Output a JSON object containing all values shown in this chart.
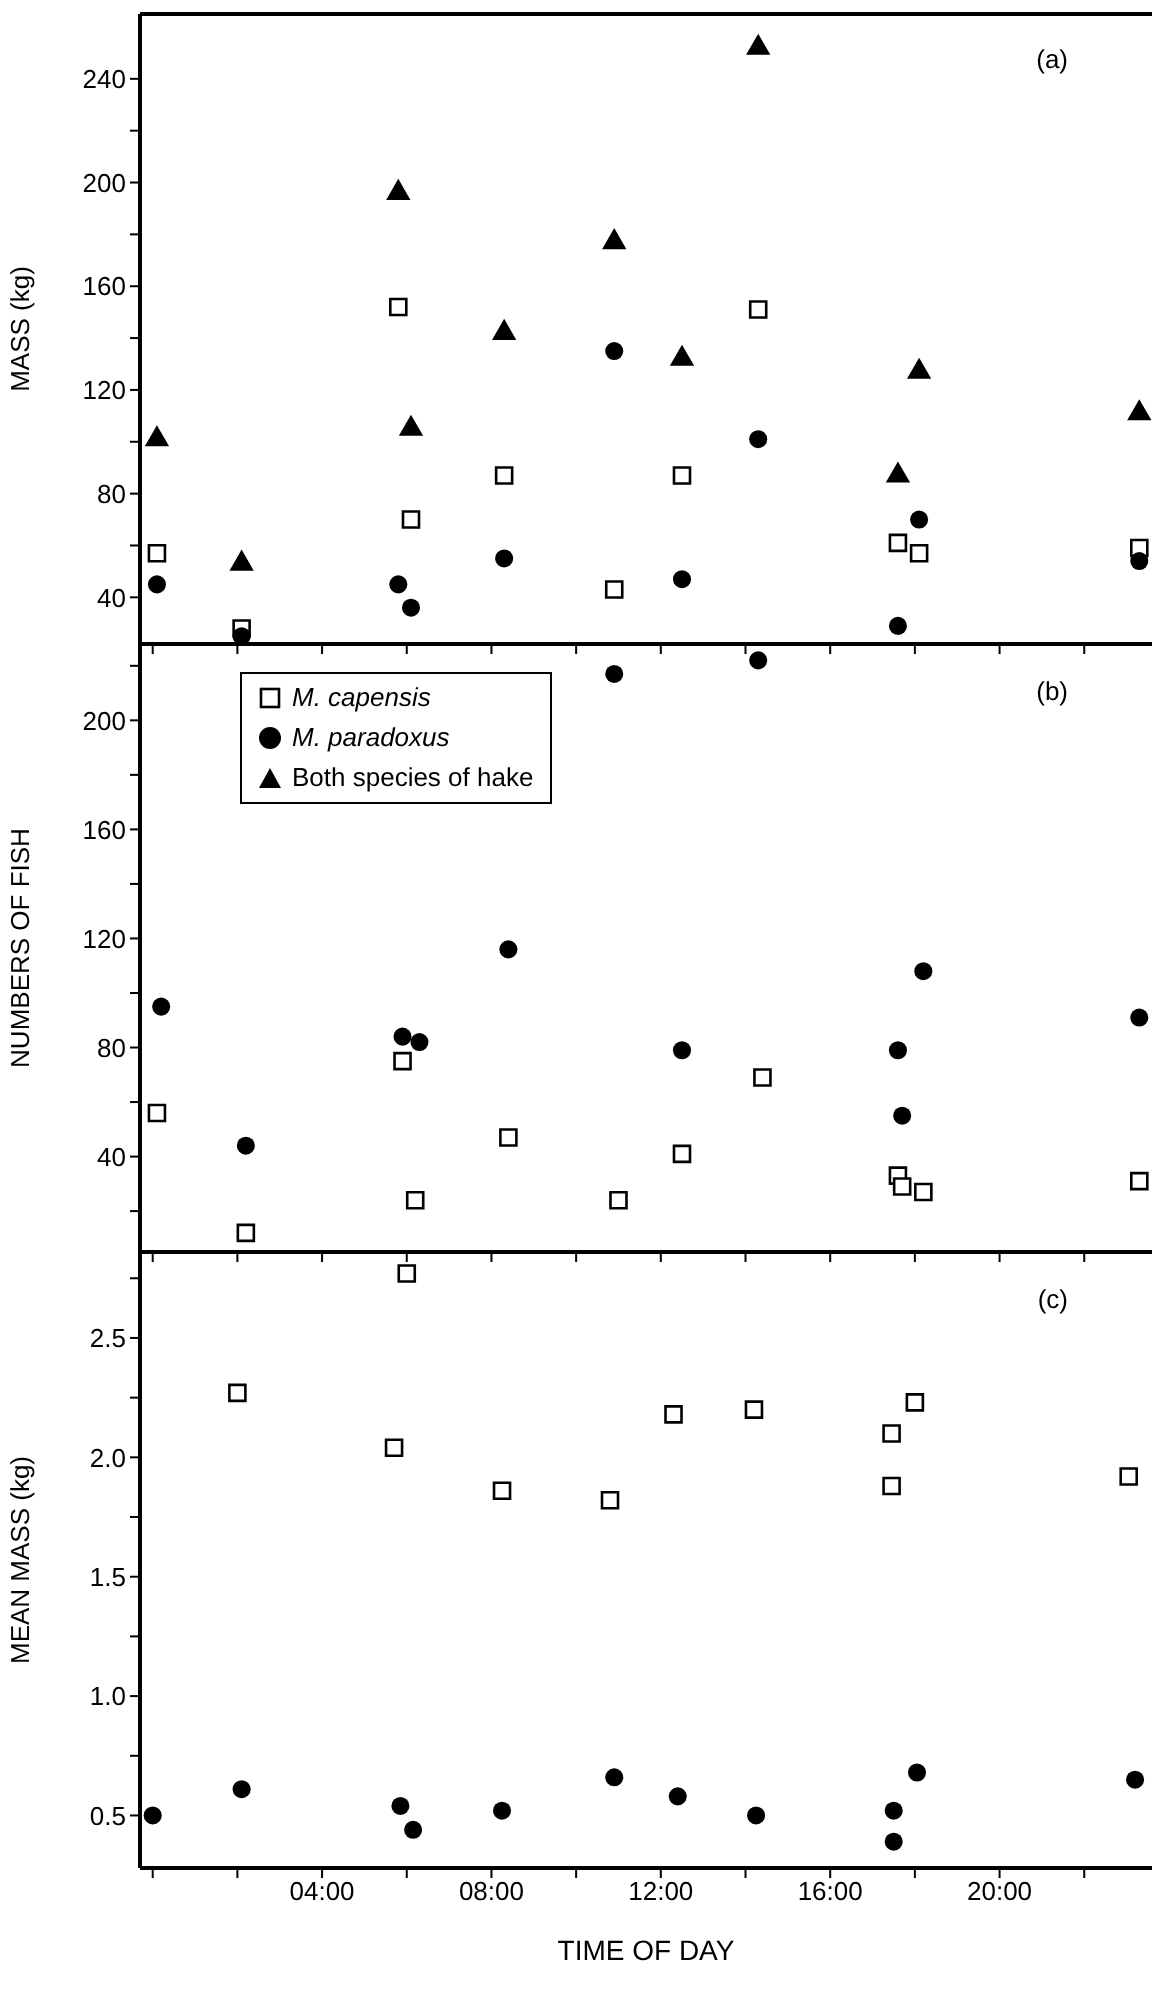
{
  "chart_data": [
    {
      "type": "scatter",
      "ylabel": "MASS (kg)",
      "annotations": [
        "(a)"
      ],
      "xlim": [
        -0.3,
        23.6
      ],
      "ylim": [
        22,
        265
      ],
      "xticks": [
        {
          "value": 0,
          "label": null
        },
        {
          "value": 2,
          "label": null
        },
        {
          "value": 4,
          "label": null
        },
        {
          "value": 6,
          "label": null
        },
        {
          "value": 8,
          "label": null
        },
        {
          "value": 10,
          "label": null
        },
        {
          "value": 12,
          "label": null
        },
        {
          "value": 14,
          "label": null
        },
        {
          "value": 16,
          "label": null
        },
        {
          "value": 18,
          "label": null
        },
        {
          "value": 20,
          "label": null
        },
        {
          "value": 22,
          "label": null
        }
      ],
      "yticks": [
        40,
        {
          "value": 60,
          "label": null
        },
        80,
        {
          "value": 100,
          "label": null
        },
        120,
        {
          "value": 140,
          "label": null
        },
        160,
        {
          "value": 180,
          "label": null
        },
        200,
        {
          "value": 220,
          "label": null
        },
        240
      ],
      "tick_labels": "y",
      "grid": false,
      "legend": false,
      "series": [
        {
          "marker": "square",
          "color": "#000000",
          "x": [
            0.1,
            2.1,
            5.8,
            6.1,
            8.3,
            10.9,
            12.5,
            14.3,
            17.6,
            18.1,
            23.3
          ],
          "values": [
            57,
            28,
            152,
            70,
            87,
            43,
            87,
            151,
            61,
            57,
            59
          ]
        },
        {
          "marker": "circle",
          "color": "#000000",
          "x": [
            0.1,
            2.1,
            5.8,
            6.1,
            8.3,
            10.9,
            12.5,
            14.3,
            17.6,
            18.1,
            23.3
          ],
          "values": [
            45,
            25,
            45,
            36,
            55,
            135,
            47,
            101,
            29,
            70,
            54
          ]
        },
        {
          "marker": "triangle",
          "color": "#000000",
          "x": [
            0.1,
            2.1,
            5.8,
            6.1,
            8.3,
            10.9,
            12.5,
            14.3,
            17.6,
            18.1,
            23.3
          ],
          "values": [
            101,
            53,
            196,
            105,
            142,
            177,
            132,
            252,
            87,
            127,
            111
          ]
        }
      ]
    },
    {
      "type": "scatter",
      "ylabel": "NUMBERS OF FISH",
      "annotations": [
        "(b)"
      ],
      "xlim": [
        -0.3,
        23.6
      ],
      "ylim": [
        5,
        228
      ],
      "xticks": [
        {
          "value": 0,
          "label": null
        },
        {
          "value": 2,
          "label": null
        },
        {
          "value": 4,
          "label": null
        },
        {
          "value": 6,
          "label": null
        },
        {
          "value": 8,
          "label": null
        },
        {
          "value": 10,
          "label": null
        },
        {
          "value": 12,
          "label": null
        },
        {
          "value": 14,
          "label": null
        },
        {
          "value": 16,
          "label": null
        },
        {
          "value": 18,
          "label": null
        },
        {
          "value": 20,
          "label": null
        },
        {
          "value": 22,
          "label": null
        }
      ],
      "yticks": [
        {
          "value": 20,
          "label": null
        },
        40,
        {
          "value": 60,
          "label": null
        },
        80,
        {
          "value": 100,
          "label": null
        },
        120,
        {
          "value": 140,
          "label": null
        },
        160,
        {
          "value": 180,
          "label": null
        },
        200,
        {
          "value": 220,
          "label": null
        }
      ],
      "tick_labels": "y",
      "grid": false,
      "legend": "top left",
      "series": [
        {
          "name": "M. capensis",
          "marker": "square",
          "color": "#000000",
          "x": [
            0.1,
            2.2,
            5.9,
            6.2,
            8.4,
            11.0,
            12.5,
            14.4,
            17.6,
            17.7,
            18.2,
            23.3
          ],
          "values": [
            56,
            12,
            75,
            24,
            47,
            24,
            41,
            69,
            33,
            29,
            27,
            31
          ]
        },
        {
          "name": "M. paradoxus",
          "marker": "circle",
          "color": "#000000",
          "x": [
            0.2,
            2.2,
            5.9,
            6.3,
            8.4,
            10.9,
            12.5,
            14.3,
            17.6,
            17.7,
            18.2,
            23.3
          ],
          "values": [
            95,
            44,
            84,
            82,
            116,
            217,
            79,
            222,
            79,
            55,
            108,
            91
          ]
        },
        {
          "name": "Both species of hake",
          "marker": "triangle",
          "color": "#000000"
        }
      ]
    },
    {
      "type": "scatter",
      "ylabel": "MEAN MASS (kg)",
      "xlabel": "TIME OF DAY",
      "annotations": [
        "(c)"
      ],
      "xlim": [
        -0.3,
        23.6
      ],
      "ylim": [
        0.28,
        2.86
      ],
      "xticks": [
        {
          "value": 0,
          "label": null
        },
        {
          "value": 2,
          "label": null
        },
        {
          "value": 4,
          "label": "04:00"
        },
        {
          "value": 6,
          "label": null
        },
        {
          "value": 8,
          "label": "08:00"
        },
        {
          "value": 10,
          "label": null
        },
        {
          "value": 12,
          "label": "12:00"
        },
        {
          "value": 14,
          "label": null
        },
        {
          "value": 16,
          "label": "16:00"
        },
        {
          "value": 18,
          "label": null
        },
        {
          "value": 20,
          "label": "20:00"
        },
        {
          "value": 22,
          "label": null
        }
      ],
      "yticks": [
        0.5,
        {
          "value": 0.75,
          "label": null
        },
        {
          "value": 1,
          "label": "1.0"
        },
        {
          "value": 1.25,
          "label": null
        },
        1.5,
        {
          "value": 1.75,
          "label": null
        },
        {
          "value": 2,
          "label": "2.0"
        },
        {
          "value": 2.25,
          "label": null
        },
        2.5,
        {
          "value": 2.75,
          "label": null
        }
      ],
      "grid": false,
      "legend": false,
      "series": [
        {
          "marker": "square",
          "color": "#000000",
          "x": [
            2.0,
            5.7,
            6.0,
            8.25,
            10.8,
            12.3,
            14.2,
            17.45,
            17.45,
            18.0,
            23.05
          ],
          "values": [
            2.27,
            2.04,
            2.77,
            1.86,
            1.82,
            2.18,
            2.2,
            2.1,
            1.88,
            2.23,
            1.92
          ]
        },
        {
          "marker": "circle",
          "color": "#000000",
          "x": [
            0.0,
            2.1,
            5.85,
            6.15,
            8.25,
            10.9,
            12.4,
            14.25,
            17.5,
            17.5,
            18.05,
            23.2
          ],
          "values": [
            0.5,
            0.61,
            0.54,
            0.44,
            0.52,
            0.66,
            0.58,
            0.5,
            0.52,
            0.39,
            0.68,
            0.65
          ]
        }
      ]
    }
  ]
}
